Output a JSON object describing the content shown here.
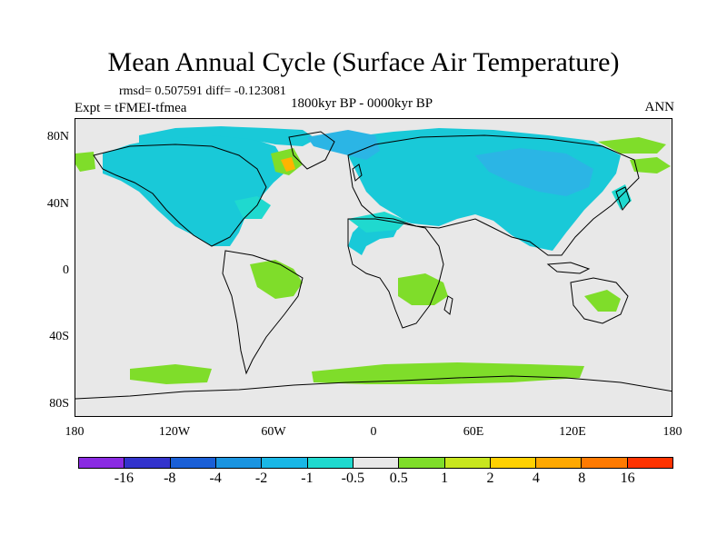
{
  "title": "Mean Annual Cycle (Surface Air Temperature)",
  "stats": "rmsd= 0.507591 diff= -0.123081",
  "experiment": "Expt = tFMEI-tfmea",
  "period": "1800kyr BP - 0000kyr BP",
  "season": "ANN",
  "map": {
    "background_color": "#e8e8e8",
    "cool_color": "#19c9d8",
    "light_cool_color": "#1fd9cf",
    "mid_cool_color": "#2bb5e5",
    "warm_color": "#7fdd2a",
    "hot_color": "#ffb400",
    "coast_color": "#000000"
  },
  "y_axis": {
    "labels": [
      "80N",
      "40N",
      "0",
      "40S",
      "80S"
    ]
  },
  "x_axis": {
    "labels": [
      "180",
      "120W",
      "60W",
      "0",
      "60E",
      "120E",
      "180"
    ]
  },
  "legend": {
    "colors": [
      "#8a2be2",
      "#3333cc",
      "#1a5fd6",
      "#1a94e0",
      "#19b7e6",
      "#1fd9cf",
      "#e8e8e8",
      "#7fdd2a",
      "#c8e61e",
      "#ffd000",
      "#ffa800",
      "#ff7a00",
      "#ff3300"
    ],
    "labels": [
      "-16",
      "-8",
      "-4",
      "-2",
      "-1",
      "-0.5",
      "0.5",
      "1",
      "2",
      "4",
      "8",
      "16"
    ]
  }
}
